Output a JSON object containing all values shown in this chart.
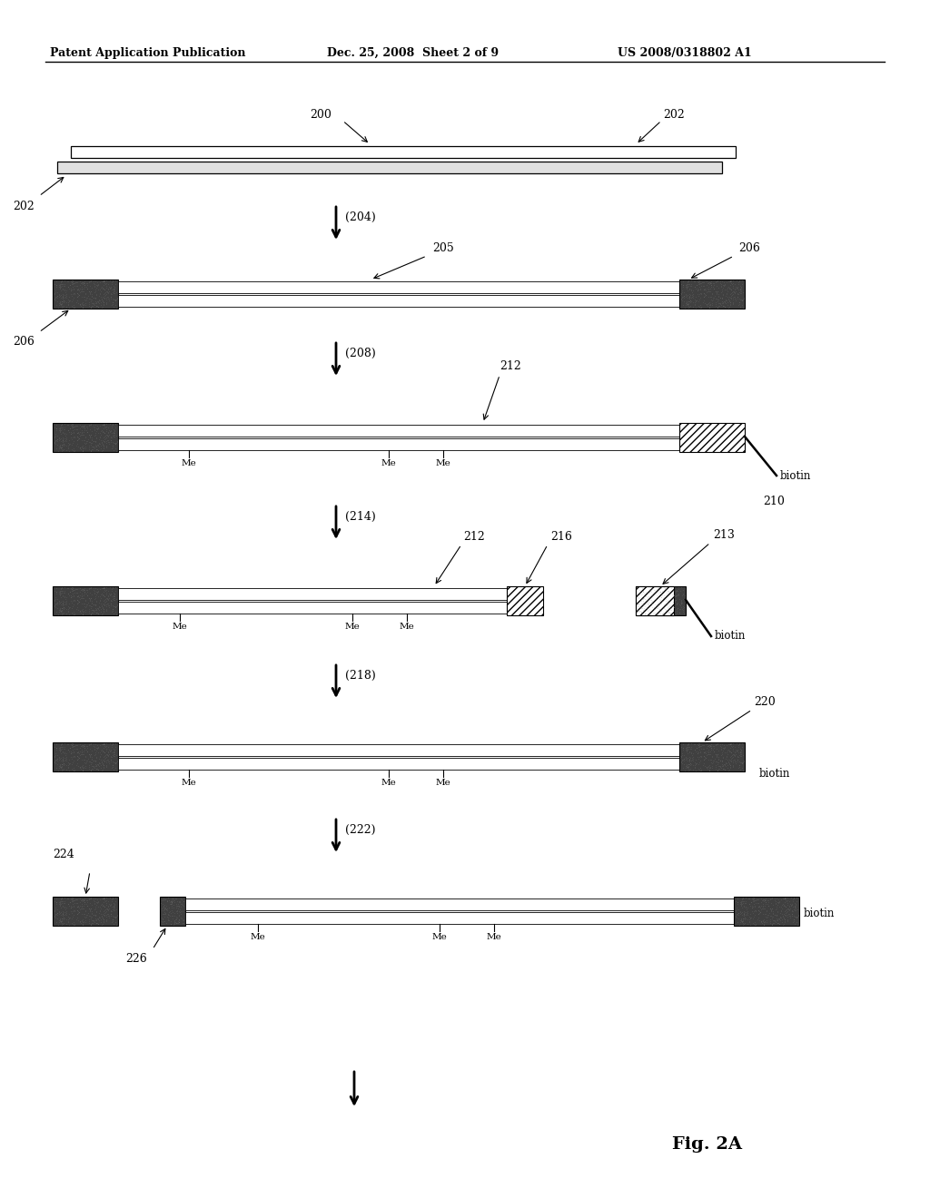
{
  "bg_color": "#ffffff",
  "header_left": "Patent Application Publication",
  "header_mid": "Dec. 25, 2008  Sheet 2 of 9",
  "header_right": "US 2008/0318802 A1",
  "fig_label": "Fig. 2A",
  "page_width": 10.24,
  "page_height": 13.2,
  "dpi": 100
}
